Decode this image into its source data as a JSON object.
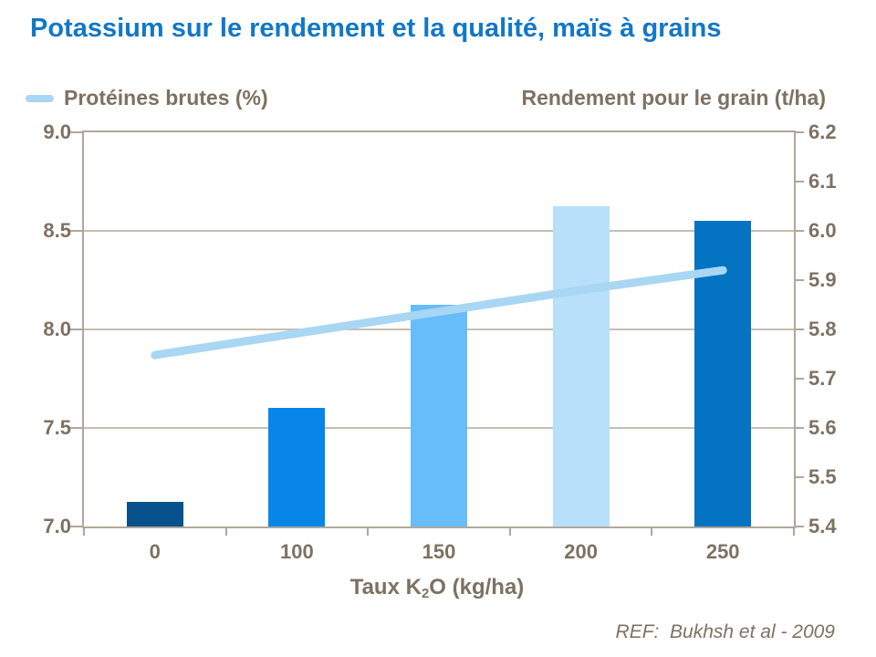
{
  "title": "Potassium sur le rendement et la qualité, maïs à grains",
  "legend": {
    "left": "Protéines brutes (%)",
    "right": "Rendement pour le grain (t/ha)"
  },
  "xlabel_parts": {
    "pre": "Taux K",
    "sub": "2",
    "post": "O (kg/ha)"
  },
  "ref": "REF:  Bukhsh et al - 2009",
  "colors": {
    "title_blue": "#1277C8",
    "text_brown": "#7D7162",
    "axis_border": "#AFA79A",
    "gridline": "#C6BEB1",
    "protein_line": "#A9D6F3",
    "bar_palette": [
      "#07528C",
      "#0886E8",
      "#66BDFA",
      "#B9E0FB",
      "#0473C2"
    ]
  },
  "chart_data": {
    "type": "bar",
    "title": "Potassium sur le rendement et la qualité, maïs à grains",
    "xlabel": "Taux K2O (kg/ha)",
    "categories": [
      "0",
      "100",
      "150",
      "200",
      "250"
    ],
    "series": [
      {
        "name": "Rendement pour le grain (t/ha)",
        "type": "bar",
        "axis": "right",
        "values": [
          5.45,
          5.64,
          5.85,
          6.05,
          6.02
        ],
        "bar_colors": [
          "#07528C",
          "#0886E8",
          "#66BDFA",
          "#B9E0FB",
          "#0473C2"
        ]
      },
      {
        "name": "Protéines brutes (%)",
        "type": "line",
        "axis": "left",
        "values": [
          7.87,
          7.98,
          8.09,
          8.2,
          8.3
        ],
        "color": "#A9D6F3"
      }
    ],
    "left_axis": {
      "label": "Protéines brutes (%)",
      "min": 7.0,
      "max": 9.0,
      "ticks": [
        "9.0",
        "8.5",
        "8.0",
        "7.5",
        "7.0"
      ]
    },
    "right_axis": {
      "label": "Rendement pour le grain (t/ha)",
      "min": 5.4,
      "max": 6.2,
      "ticks": [
        "6.2",
        "6.1",
        "6.0",
        "5.9",
        "5.8",
        "5.7",
        "5.6",
        "5.5",
        "5.4"
      ]
    },
    "grid": "horizontal gridlines at left-axis 0.5 steps (8.5, 8.0, 7.5)",
    "legend_position": "top"
  }
}
